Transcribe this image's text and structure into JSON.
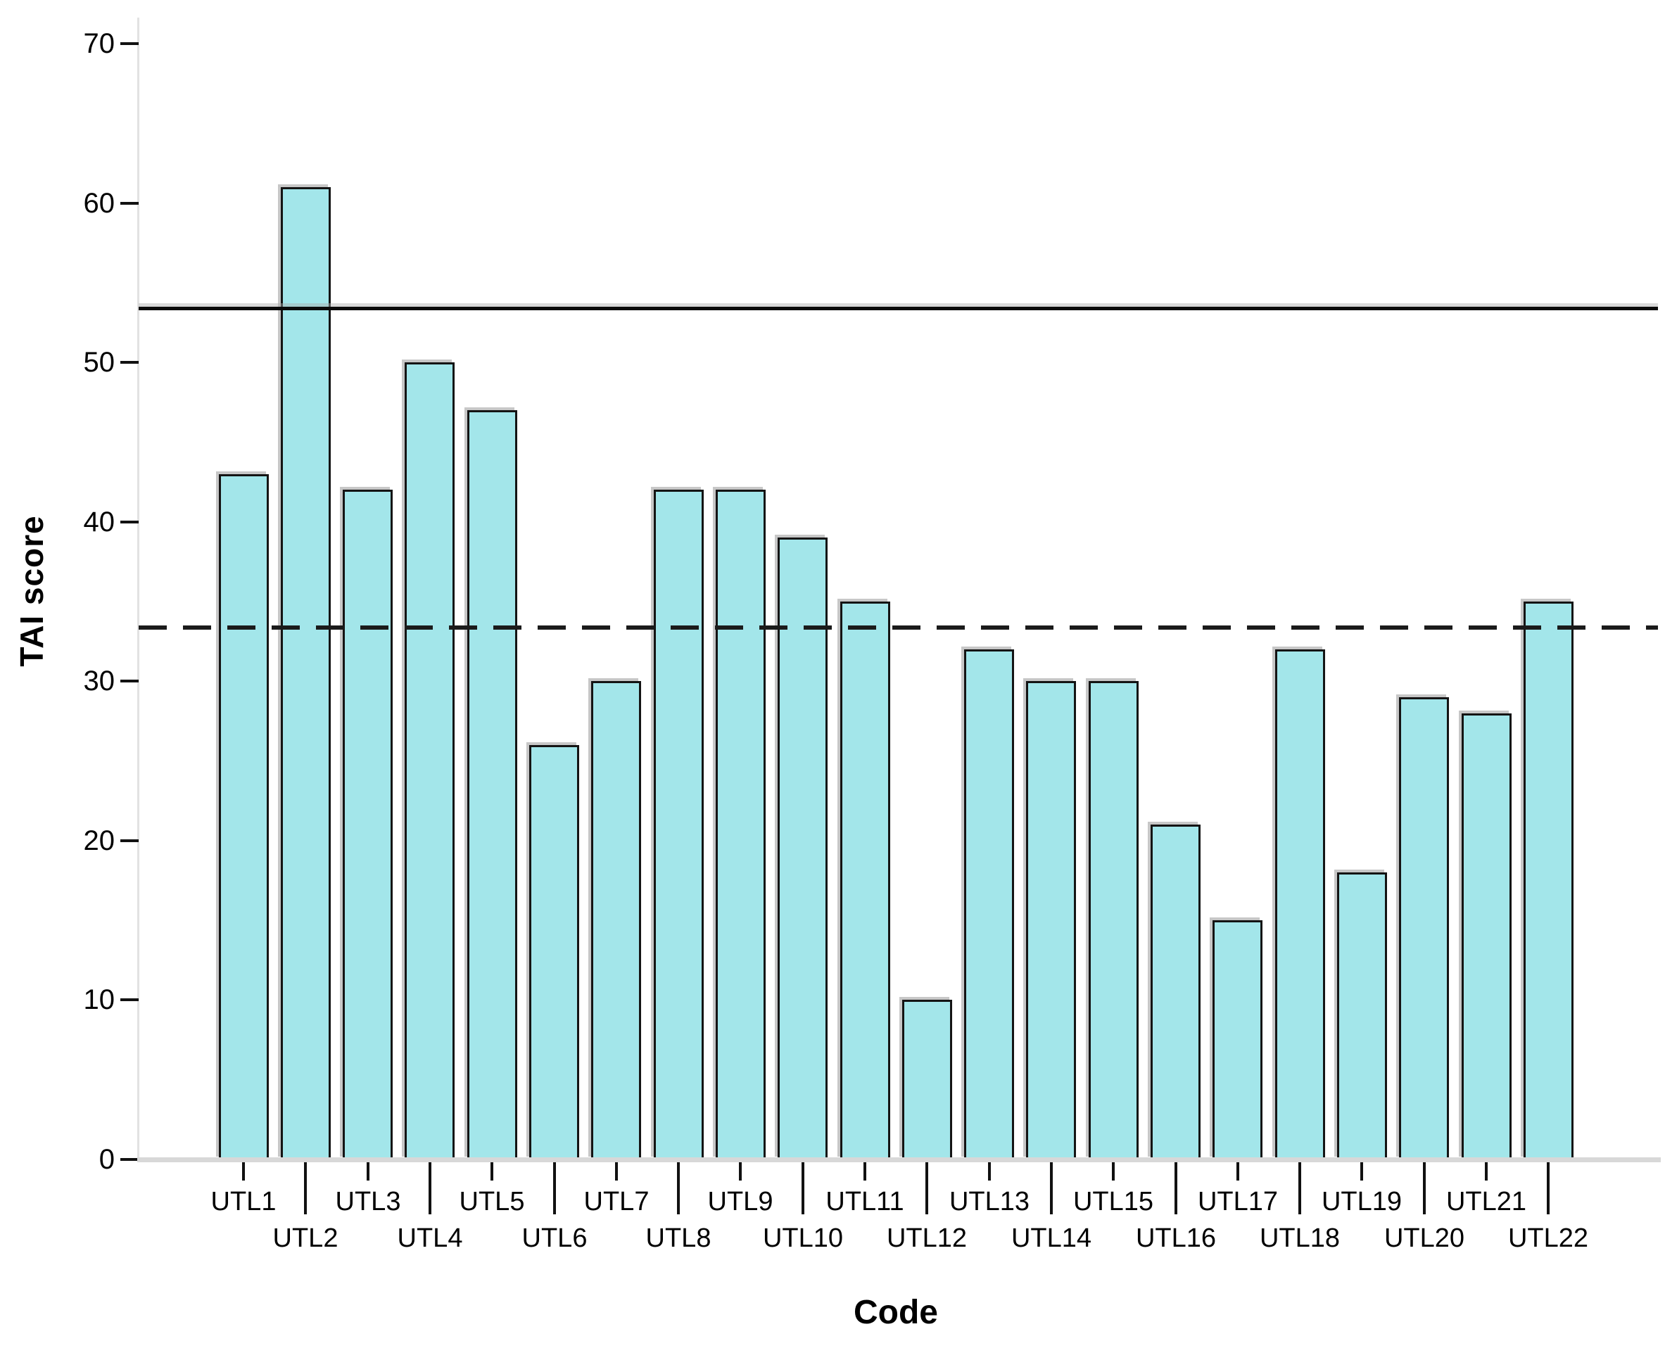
{
  "chart_data": {
    "type": "bar",
    "title": "",
    "xlabel": "Code",
    "ylabel": "TAI score",
    "categories": [
      "UTL1",
      "UTL2",
      "UTL3",
      "UTL4",
      "UTL5",
      "UTL6",
      "UTL7",
      "UTL8",
      "UTL9",
      "UTL10",
      "UTL11",
      "UTL12",
      "UTL13",
      "UTL14",
      "UTL15",
      "UTL16",
      "UTL17",
      "UTL18",
      "UTL19",
      "UTL20",
      "UTL21",
      "UTL22"
    ],
    "values": [
      43,
      61,
      42,
      50,
      47,
      26,
      30,
      42,
      42,
      39,
      35,
      10,
      32,
      30,
      30,
      21,
      15,
      32,
      18,
      29,
      28,
      35
    ],
    "ylim": [
      0,
      70
    ],
    "yticks": [
      0,
      10,
      20,
      30,
      40,
      50,
      60,
      70
    ],
    "grid": false,
    "legend": null,
    "reference_lines": [
      {
        "style": "solid",
        "value": 53.5
      },
      {
        "style": "dashed",
        "value": 33.5
      }
    ],
    "colors": {
      "bar_fill": "#A3E6EA",
      "bar_border": "#141414",
      "axis_line": "#e2e2e2",
      "baseline": "#d8d8d8",
      "tick": "#111111",
      "reference_solid": "#0a0a0a",
      "reference_dashed": "#1b1b1b"
    }
  }
}
